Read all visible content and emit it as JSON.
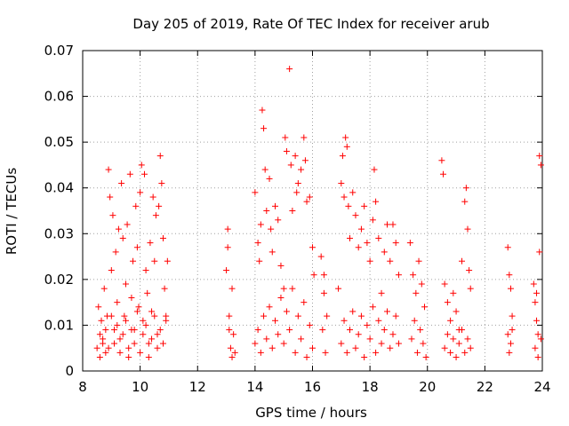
{
  "chart_data": {
    "type": "scatter",
    "title": "Day 205 of 2019, Rate Of TEC Index for receiver arub",
    "xlabel": "GPS time / hours",
    "ylabel": "ROTI / TECUs",
    "xlim": [
      8,
      24
    ],
    "ylim": [
      0,
      0.07
    ],
    "xticks": [
      "8",
      "10",
      "12",
      "14",
      "16",
      "18",
      "20",
      "22",
      "24"
    ],
    "yticks": [
      "0",
      "0.01",
      "0.02",
      "0.03",
      "0.04",
      "0.05",
      "0.06",
      "0.07"
    ],
    "grid": true,
    "marker": "+",
    "color": "#ff0000",
    "series": [
      {
        "name": "ROTI",
        "points": [
          [
            8.5,
            0.005
          ],
          [
            8.55,
            0.014
          ],
          [
            8.6,
            0.008
          ],
          [
            8.65,
            0.011
          ],
          [
            8.7,
            0.006
          ],
          [
            8.75,
            0.018
          ],
          [
            8.8,
            0.004
          ],
          [
            8.85,
            0.012
          ],
          [
            8.9,
            0.044
          ],
          [
            8.95,
            0.038
          ],
          [
            9.0,
            0.022
          ],
          [
            9.05,
            0.034
          ],
          [
            9.1,
            0.009
          ],
          [
            9.15,
            0.026
          ],
          [
            9.2,
            0.015
          ],
          [
            9.25,
            0.031
          ],
          [
            9.3,
            0.007
          ],
          [
            9.35,
            0.041
          ],
          [
            9.4,
            0.029
          ],
          [
            9.45,
            0.012
          ],
          [
            9.5,
            0.019
          ],
          [
            9.55,
            0.032
          ],
          [
            9.6,
            0.005
          ],
          [
            9.65,
            0.043
          ],
          [
            9.7,
            0.016
          ],
          [
            9.75,
            0.024
          ],
          [
            9.8,
            0.009
          ],
          [
            9.85,
            0.036
          ],
          [
            9.9,
            0.027
          ],
          [
            9.95,
            0.014
          ],
          [
            10.0,
            0.039
          ],
          [
            10.05,
            0.045
          ],
          [
            10.1,
            0.011
          ],
          [
            10.15,
            0.043
          ],
          [
            10.2,
            0.022
          ],
          [
            10.25,
            0.017
          ],
          [
            10.3,
            0.006
          ],
          [
            10.35,
            0.028
          ],
          [
            10.4,
            0.013
          ],
          [
            10.45,
            0.038
          ],
          [
            10.5,
            0.024
          ],
          [
            10.55,
            0.034
          ],
          [
            10.6,
            0.008
          ],
          [
            10.65,
            0.036
          ],
          [
            10.7,
            0.047
          ],
          [
            10.75,
            0.041
          ],
          [
            10.8,
            0.029
          ],
          [
            10.85,
            0.018
          ],
          [
            10.9,
            0.012
          ],
          [
            10.95,
            0.024
          ],
          [
            8.6,
            0.003
          ],
          [
            8.7,
            0.007
          ],
          [
            8.8,
            0.009
          ],
          [
            8.9,
            0.005
          ],
          [
            9.0,
            0.012
          ],
          [
            9.1,
            0.006
          ],
          [
            9.2,
            0.01
          ],
          [
            9.3,
            0.004
          ],
          [
            9.4,
            0.008
          ],
          [
            9.5,
            0.011
          ],
          [
            9.6,
            0.003
          ],
          [
            9.7,
            0.009
          ],
          [
            9.8,
            0.006
          ],
          [
            9.9,
            0.013
          ],
          [
            10.0,
            0.004
          ],
          [
            10.1,
            0.008
          ],
          [
            10.2,
            0.01
          ],
          [
            10.3,
            0.003
          ],
          [
            10.4,
            0.007
          ],
          [
            10.5,
            0.012
          ],
          [
            10.6,
            0.005
          ],
          [
            10.7,
            0.009
          ],
          [
            10.8,
            0.006
          ],
          [
            10.9,
            0.011
          ],
          [
            13.0,
            0.022
          ],
          [
            13.05,
            0.031
          ],
          [
            13.1,
            0.012
          ],
          [
            13.15,
            0.005
          ],
          [
            13.2,
            0.018
          ],
          [
            13.25,
            0.008
          ],
          [
            13.3,
            0.004
          ],
          [
            13.05,
            0.027
          ],
          [
            13.1,
            0.009
          ],
          [
            13.2,
            0.003
          ],
          [
            14.0,
            0.039
          ],
          [
            14.1,
            0.028
          ],
          [
            14.15,
            0.024
          ],
          [
            14.2,
            0.032
          ],
          [
            14.25,
            0.057
          ],
          [
            14.3,
            0.053
          ],
          [
            14.35,
            0.044
          ],
          [
            14.4,
            0.035
          ],
          [
            14.5,
            0.042
          ],
          [
            14.55,
            0.031
          ],
          [
            14.6,
            0.026
          ],
          [
            14.7,
            0.036
          ],
          [
            14.8,
            0.033
          ],
          [
            14.9,
            0.023
          ],
          [
            15.0,
            0.018
          ],
          [
            15.05,
            0.051
          ],
          [
            15.1,
            0.048
          ],
          [
            15.2,
            0.066
          ],
          [
            15.25,
            0.045
          ],
          [
            15.3,
            0.035
          ],
          [
            15.4,
            0.047
          ],
          [
            15.45,
            0.039
          ],
          [
            15.5,
            0.041
          ],
          [
            15.6,
            0.044
          ],
          [
            15.7,
            0.051
          ],
          [
            15.75,
            0.046
          ],
          [
            15.8,
            0.037
          ],
          [
            15.9,
            0.038
          ],
          [
            16.0,
            0.027
          ],
          [
            16.05,
            0.021
          ],
          [
            14.0,
            0.006
          ],
          [
            14.1,
            0.009
          ],
          [
            14.2,
            0.004
          ],
          [
            14.3,
            0.012
          ],
          [
            14.4,
            0.007
          ],
          [
            14.5,
            0.014
          ],
          [
            14.6,
            0.005
          ],
          [
            14.7,
            0.011
          ],
          [
            14.8,
            0.008
          ],
          [
            14.9,
            0.016
          ],
          [
            15.0,
            0.006
          ],
          [
            15.1,
            0.013
          ],
          [
            15.2,
            0.009
          ],
          [
            15.3,
            0.018
          ],
          [
            15.4,
            0.004
          ],
          [
            15.5,
            0.012
          ],
          [
            15.6,
            0.007
          ],
          [
            15.7,
            0.015
          ],
          [
            15.8,
            0.003
          ],
          [
            15.9,
            0.01
          ],
          [
            16.0,
            0.005
          ],
          [
            16.3,
            0.025
          ],
          [
            16.4,
            0.017
          ],
          [
            16.35,
            0.009
          ],
          [
            16.45,
            0.004
          ],
          [
            16.5,
            0.012
          ],
          [
            16.4,
            0.021
          ],
          [
            16.9,
            0.018
          ],
          [
            17.0,
            0.041
          ],
          [
            17.05,
            0.047
          ],
          [
            17.1,
            0.038
          ],
          [
            17.15,
            0.051
          ],
          [
            17.2,
            0.049
          ],
          [
            17.25,
            0.036
          ],
          [
            17.3,
            0.029
          ],
          [
            17.4,
            0.039
          ],
          [
            17.5,
            0.034
          ],
          [
            17.6,
            0.027
          ],
          [
            17.7,
            0.031
          ],
          [
            17.8,
            0.036
          ],
          [
            17.9,
            0.028
          ],
          [
            18.0,
            0.024
          ],
          [
            18.1,
            0.033
          ],
          [
            18.15,
            0.044
          ],
          [
            18.2,
            0.037
          ],
          [
            18.3,
            0.029
          ],
          [
            18.4,
            0.017
          ],
          [
            18.5,
            0.026
          ],
          [
            18.6,
            0.032
          ],
          [
            18.7,
            0.024
          ],
          [
            18.8,
            0.032
          ],
          [
            18.9,
            0.028
          ],
          [
            19.0,
            0.021
          ],
          [
            17.0,
            0.006
          ],
          [
            17.1,
            0.011
          ],
          [
            17.2,
            0.004
          ],
          [
            17.3,
            0.009
          ],
          [
            17.4,
            0.013
          ],
          [
            17.5,
            0.005
          ],
          [
            17.6,
            0.008
          ],
          [
            17.7,
            0.012
          ],
          [
            17.8,
            0.003
          ],
          [
            17.9,
            0.01
          ],
          [
            18.0,
            0.007
          ],
          [
            18.1,
            0.014
          ],
          [
            18.2,
            0.004
          ],
          [
            18.3,
            0.011
          ],
          [
            18.4,
            0.006
          ],
          [
            18.5,
            0.009
          ],
          [
            18.6,
            0.013
          ],
          [
            18.7,
            0.005
          ],
          [
            18.8,
            0.008
          ],
          [
            18.9,
            0.012
          ],
          [
            19.0,
            0.006
          ],
          [
            19.4,
            0.028
          ],
          [
            19.5,
            0.021
          ],
          [
            19.6,
            0.017
          ],
          [
            19.7,
            0.024
          ],
          [
            19.8,
            0.019
          ],
          [
            19.9,
            0.014
          ],
          [
            19.45,
            0.007
          ],
          [
            19.55,
            0.011
          ],
          [
            19.65,
            0.004
          ],
          [
            19.75,
            0.009
          ],
          [
            19.85,
            0.006
          ],
          [
            19.95,
            0.003
          ],
          [
            20.5,
            0.046
          ],
          [
            20.55,
            0.043
          ],
          [
            20.6,
            0.019
          ],
          [
            20.7,
            0.015
          ],
          [
            20.8,
            0.011
          ],
          [
            20.9,
            0.017
          ],
          [
            21.0,
            0.013
          ],
          [
            21.1,
            0.009
          ],
          [
            21.2,
            0.024
          ],
          [
            21.3,
            0.037
          ],
          [
            21.35,
            0.04
          ],
          [
            21.4,
            0.031
          ],
          [
            21.45,
            0.022
          ],
          [
            21.5,
            0.018
          ],
          [
            20.6,
            0.005
          ],
          [
            20.7,
            0.008
          ],
          [
            20.8,
            0.004
          ],
          [
            20.9,
            0.007
          ],
          [
            21.0,
            0.003
          ],
          [
            21.1,
            0.006
          ],
          [
            21.2,
            0.009
          ],
          [
            21.3,
            0.004
          ],
          [
            21.4,
            0.007
          ],
          [
            21.5,
            0.005
          ],
          [
            22.8,
            0.027
          ],
          [
            22.85,
            0.021
          ],
          [
            22.9,
            0.018
          ],
          [
            22.95,
            0.012
          ],
          [
            22.8,
            0.008
          ],
          [
            22.85,
            0.004
          ],
          [
            22.9,
            0.006
          ],
          [
            22.95,
            0.009
          ],
          [
            23.7,
            0.019
          ],
          [
            23.75,
            0.015
          ],
          [
            23.8,
            0.011
          ],
          [
            23.85,
            0.008
          ],
          [
            23.9,
            0.047
          ],
          [
            23.95,
            0.045
          ],
          [
            23.9,
            0.026
          ],
          [
            23.8,
            0.017
          ],
          [
            23.75,
            0.005
          ],
          [
            23.85,
            0.003
          ],
          [
            23.95,
            0.007
          ]
        ]
      }
    ]
  }
}
